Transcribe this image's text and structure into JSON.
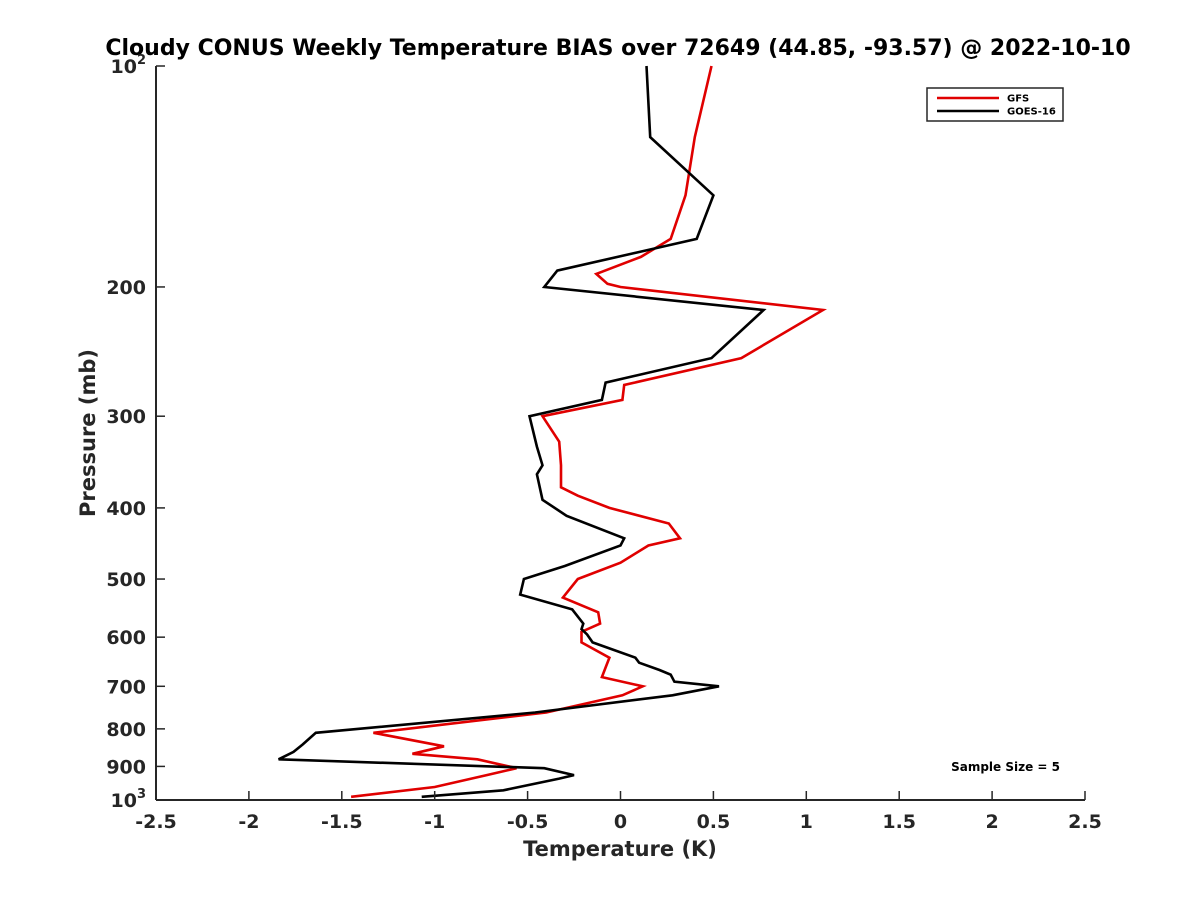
{
  "chart_data": {
    "type": "line",
    "title": "Cloudy CONUS Weekly Temperature BIAS over 72649 (44.85, -93.57) @ 2022-10-10",
    "xlabel": "Temperature (K)",
    "ylabel": "Pressure (mb)",
    "xlim": [
      -2.5,
      2.5
    ],
    "ylim": [
      1000,
      100
    ],
    "yscale": "log",
    "x_ticks": [
      "-2.5",
      "-2",
      "-1.5",
      "-1",
      "-0.5",
      "0",
      "0.5",
      "1",
      "1.5",
      "2",
      "2.5"
    ],
    "y_ticks": [
      {
        "value": 100,
        "base": "10",
        "exp": "2",
        "label": ""
      },
      {
        "value": 200,
        "label": "200"
      },
      {
        "value": 300,
        "label": "300"
      },
      {
        "value": 400,
        "label": "400"
      },
      {
        "value": 500,
        "label": "500"
      },
      {
        "value": 600,
        "label": "600"
      },
      {
        "value": 700,
        "label": "700"
      },
      {
        "value": 800,
        "label": "800"
      },
      {
        "value": 900,
        "label": "900"
      },
      {
        "value": 1000,
        "base": "10",
        "exp": "3",
        "label": ""
      }
    ],
    "legend_position": "top-right",
    "annotation": "Sample Size = 5",
    "series": [
      {
        "name": "GFS",
        "color": "#e00000",
        "points": [
          [
            0.49,
            100
          ],
          [
            0.4,
            125
          ],
          [
            0.35,
            150
          ],
          [
            0.27,
            172
          ],
          [
            0.11,
            182
          ],
          [
            -0.13,
            192
          ],
          [
            -0.07,
            198
          ],
          [
            0.0,
            200
          ],
          [
            1.09,
            215
          ],
          [
            0.65,
            250
          ],
          [
            0.02,
            272
          ],
          [
            0.01,
            285
          ],
          [
            -0.42,
            300
          ],
          [
            -0.33,
            325
          ],
          [
            -0.32,
            350
          ],
          [
            -0.32,
            375
          ],
          [
            -0.23,
            385
          ],
          [
            -0.06,
            400
          ],
          [
            0.26,
            420
          ],
          [
            0.32,
            440
          ],
          [
            0.15,
            450
          ],
          [
            0.0,
            475
          ],
          [
            -0.23,
            500
          ],
          [
            -0.31,
            530
          ],
          [
            -0.12,
            555
          ],
          [
            -0.11,
            575
          ],
          [
            -0.21,
            590
          ],
          [
            -0.21,
            610
          ],
          [
            -0.06,
            640
          ],
          [
            -0.08,
            660
          ],
          [
            -0.1,
            680
          ],
          [
            0.12,
            700
          ],
          [
            0.01,
            720
          ],
          [
            -0.4,
            760
          ],
          [
            -1.33,
            810
          ],
          [
            -0.95,
            845
          ],
          [
            -1.12,
            865
          ],
          [
            -0.77,
            880
          ],
          [
            -0.56,
            905
          ],
          [
            -0.72,
            925
          ],
          [
            -1.0,
            960
          ],
          [
            -1.45,
            990
          ]
        ]
      },
      {
        "name": "GOES-16",
        "color": "#000000",
        "points": [
          [
            0.14,
            100
          ],
          [
            0.16,
            125
          ],
          [
            0.5,
            150
          ],
          [
            0.41,
            172
          ],
          [
            -0.34,
            190
          ],
          [
            -0.41,
            200
          ],
          [
            0.77,
            215
          ],
          [
            0.49,
            250
          ],
          [
            -0.08,
            270
          ],
          [
            -0.1,
            285
          ],
          [
            -0.49,
            300
          ],
          [
            -0.45,
            330
          ],
          [
            -0.42,
            350
          ],
          [
            -0.45,
            360
          ],
          [
            -0.42,
            390
          ],
          [
            -0.29,
            410
          ],
          [
            0.02,
            440
          ],
          [
            0.0,
            450
          ],
          [
            -0.3,
            480
          ],
          [
            -0.52,
            500
          ],
          [
            -0.54,
            525
          ],
          [
            -0.26,
            550
          ],
          [
            -0.2,
            575
          ],
          [
            -0.21,
            585
          ],
          [
            -0.18,
            595
          ],
          [
            -0.15,
            610
          ],
          [
            0.08,
            640
          ],
          [
            0.1,
            650
          ],
          [
            0.21,
            665
          ],
          [
            0.27,
            675
          ],
          [
            0.29,
            690
          ],
          [
            0.53,
            700
          ],
          [
            0.28,
            720
          ],
          [
            -0.46,
            760
          ],
          [
            -1.64,
            810
          ],
          [
            -1.71,
            840
          ],
          [
            -1.76,
            860
          ],
          [
            -1.84,
            880
          ],
          [
            -0.41,
            905
          ],
          [
            -0.25,
            925
          ],
          [
            -0.33,
            935
          ],
          [
            -0.63,
            970
          ],
          [
            -1.07,
            990
          ]
        ]
      }
    ]
  }
}
